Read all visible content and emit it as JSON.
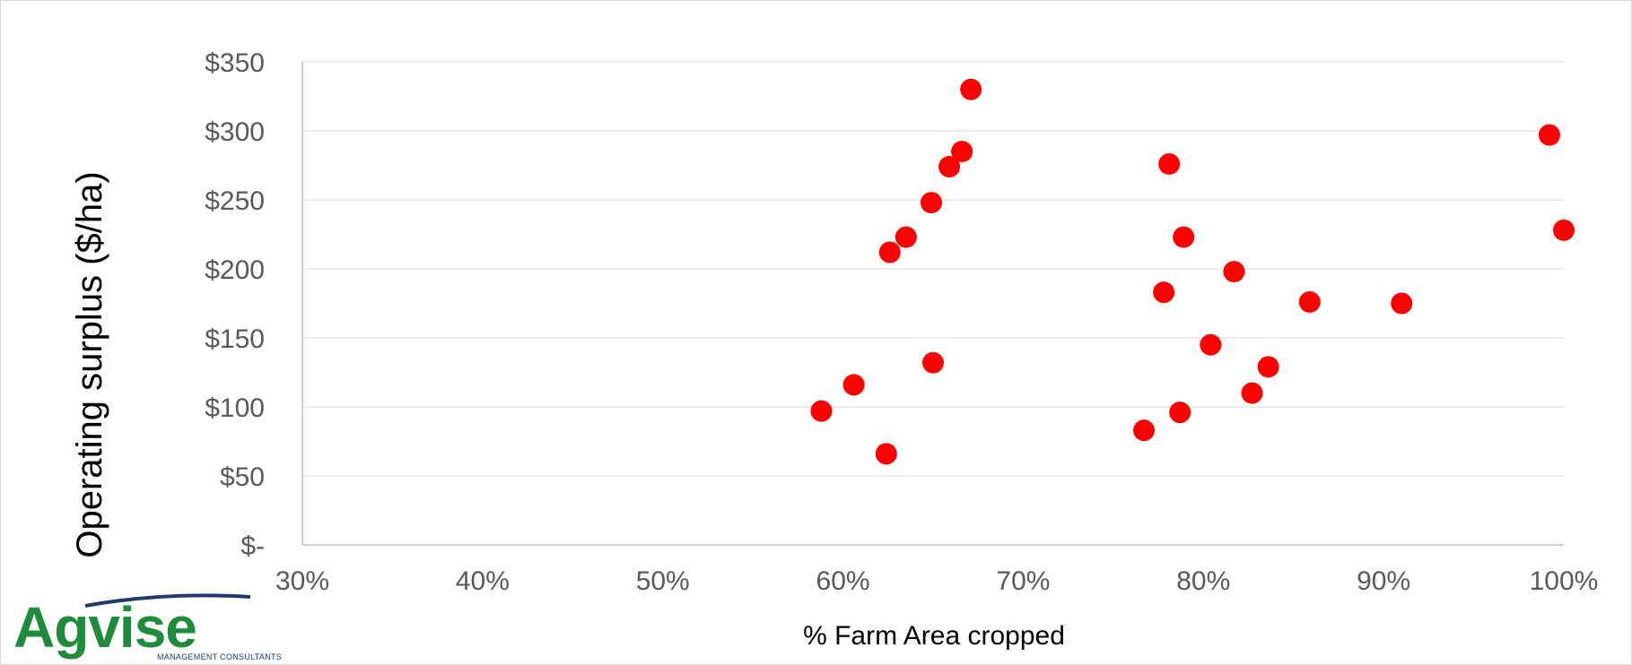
{
  "chart_data": {
    "type": "scatter",
    "xlabel": "% Farm Area cropped",
    "ylabel": "Operating surplus ($/ha)",
    "xlim": [
      0.3,
      1.0
    ],
    "ylim": [
      0,
      350
    ],
    "x_ticks": [
      0.3,
      0.4,
      0.5,
      0.6,
      0.7,
      0.8,
      0.9,
      1.0
    ],
    "x_tick_labels": [
      "30%",
      "40%",
      "50%",
      "60%",
      "70%",
      "80%",
      "90%",
      "100%"
    ],
    "y_ticks": [
      0,
      50,
      100,
      150,
      200,
      250,
      300,
      350
    ],
    "y_tick_labels": [
      "$-",
      "$50",
      "$100",
      "$150",
      "$200",
      "$250",
      "$300",
      "$350"
    ],
    "grid": "horizontal",
    "marker_color": "#ff0000",
    "points": [
      {
        "x": 0.588,
        "y": 97
      },
      {
        "x": 0.606,
        "y": 116
      },
      {
        "x": 0.624,
        "y": 66
      },
      {
        "x": 0.626,
        "y": 212
      },
      {
        "x": 0.635,
        "y": 223
      },
      {
        "x": 0.649,
        "y": 248
      },
      {
        "x": 0.65,
        "y": 132
      },
      {
        "x": 0.659,
        "y": 274
      },
      {
        "x": 0.666,
        "y": 285
      },
      {
        "x": 0.671,
        "y": 330
      },
      {
        "x": 0.767,
        "y": 83
      },
      {
        "x": 0.778,
        "y": 183
      },
      {
        "x": 0.781,
        "y": 276
      },
      {
        "x": 0.787,
        "y": 96
      },
      {
        "x": 0.789,
        "y": 223
      },
      {
        "x": 0.804,
        "y": 145
      },
      {
        "x": 0.817,
        "y": 198
      },
      {
        "x": 0.827,
        "y": 110
      },
      {
        "x": 0.836,
        "y": 129
      },
      {
        "x": 0.859,
        "y": 176
      },
      {
        "x": 0.91,
        "y": 175
      },
      {
        "x": 0.992,
        "y": 297
      },
      {
        "x": 1.0,
        "y": 228
      }
    ]
  },
  "logo": {
    "name": "Agvise",
    "tagline": "MANAGEMENT CONSULTANTS",
    "color": "#1e8c3a",
    "swoosh_color": "#1f3a6b"
  }
}
